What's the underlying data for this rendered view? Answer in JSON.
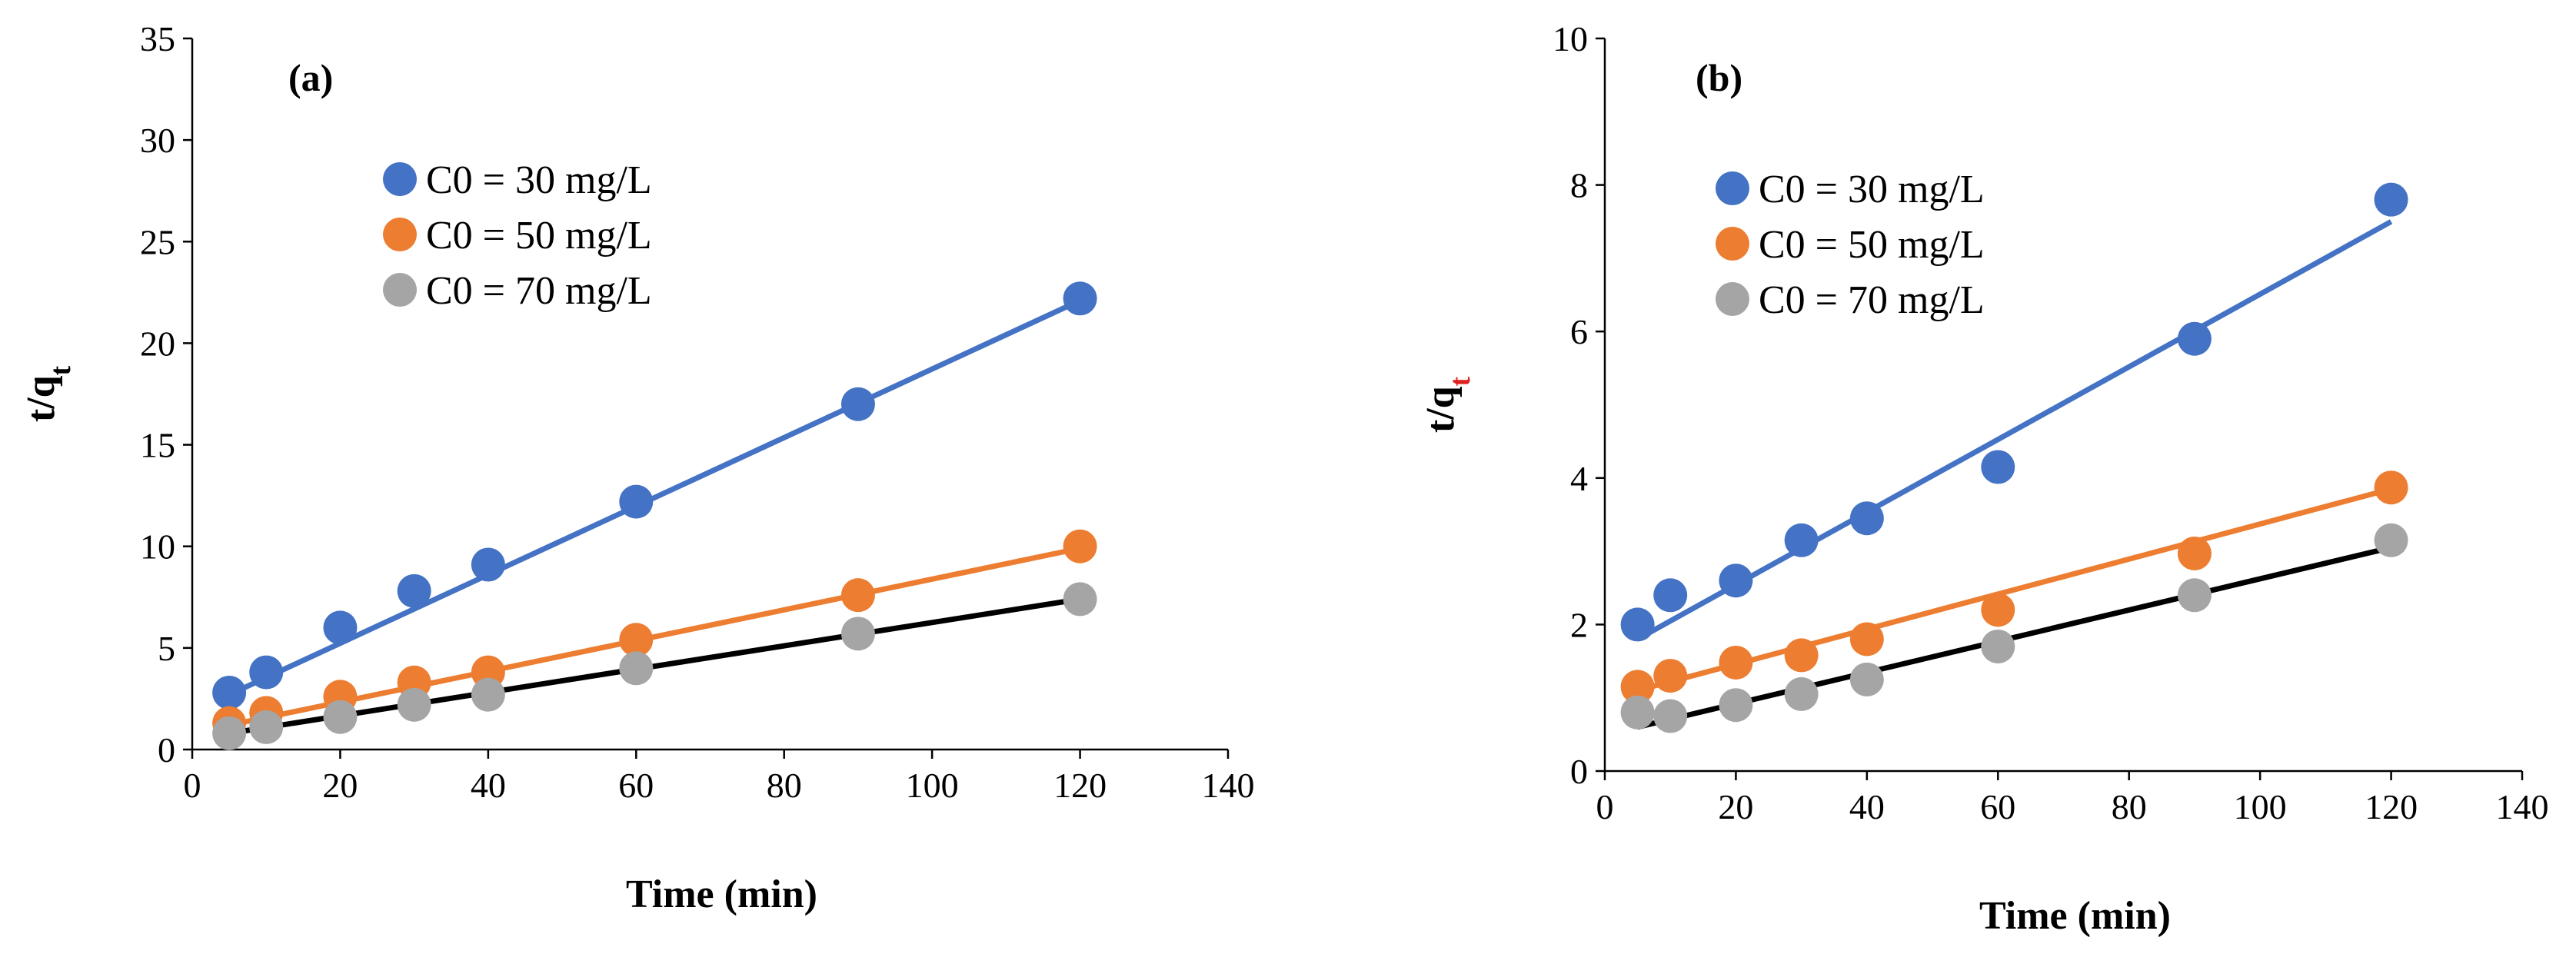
{
  "chart_data": [
    {
      "type": "scatter",
      "panel_label": "(a)",
      "xlabel": "Time (min)",
      "ylabel_main": "t/q",
      "ylabel_sub": "t",
      "ylabel_sub_color": "#000000",
      "xlim": [
        0,
        140
      ],
      "ylim": [
        0,
        35
      ],
      "xticks": [
        "0",
        "20",
        "40",
        "60",
        "80",
        "100",
        "120",
        "140"
      ],
      "yticks": [
        "0",
        "5",
        "10",
        "15",
        "20",
        "25",
        "30",
        "35"
      ],
      "grid": false,
      "legend_position": "top-center",
      "series": [
        {
          "name": "C0 = 30 mg/L",
          "color": "#4472C4",
          "line_color": "#4472C4",
          "x": [
            5,
            10,
            20,
            30,
            40,
            60,
            90,
            120
          ],
          "y": [
            2.8,
            3.8,
            6.0,
            7.8,
            9.1,
            12.2,
            17.0,
            22.2
          ],
          "fit": [
            [
              5,
              2.7
            ],
            [
              120,
              22.1
            ]
          ]
        },
        {
          "name": "C0 = 50 mg/L",
          "color": "#ED7D31",
          "line_color": "#ED7D31",
          "x": [
            5,
            10,
            20,
            30,
            40,
            60,
            90,
            120
          ],
          "y": [
            1.3,
            1.8,
            2.6,
            3.3,
            3.8,
            5.4,
            7.6,
            10.0
          ],
          "fit": [
            [
              5,
              1.2
            ],
            [
              120,
              9.9
            ]
          ]
        },
        {
          "name": "C0 = 70  mg/L",
          "color": "#A5A5A5",
          "line_color": "#000000",
          "x": [
            5,
            10,
            20,
            30,
            40,
            60,
            90,
            120
          ],
          "y": [
            0.8,
            1.1,
            1.6,
            2.2,
            2.7,
            4.0,
            5.7,
            7.4
          ],
          "fit": [
            [
              5,
              0.8
            ],
            [
              120,
              7.4
            ]
          ]
        }
      ]
    },
    {
      "type": "scatter",
      "panel_label": "(b)",
      "xlabel": "Time (min)",
      "ylabel_main": "t/q",
      "ylabel_sub": "t",
      "ylabel_sub_color": "#E02020",
      "xlim": [
        0,
        140
      ],
      "ylim": [
        0,
        10
      ],
      "xticks": [
        "0",
        "20",
        "40",
        "60",
        "80",
        "100",
        "120",
        "140"
      ],
      "yticks": [
        "0",
        "2",
        "4",
        "6",
        "8",
        "10"
      ],
      "grid": false,
      "legend_position": "top-center",
      "series": [
        {
          "name": "C0 = 30 mg/L",
          "color": "#4472C4",
          "line_color": "#4472C4",
          "x": [
            5,
            10,
            20,
            30,
            40,
            60,
            90,
            120
          ],
          "y": [
            2.0,
            2.4,
            2.6,
            3.15,
            3.45,
            4.15,
            5.9,
            7.8
          ],
          "fit": [
            [
              5,
              1.8
            ],
            [
              120,
              7.5
            ]
          ]
        },
        {
          "name": "C0 = 50 mg/L",
          "color": "#ED7D31",
          "line_color": "#ED7D31",
          "x": [
            5,
            10,
            20,
            30,
            40,
            60,
            90,
            120
          ],
          "y": [
            1.15,
            1.3,
            1.48,
            1.58,
            1.8,
            2.2,
            2.97,
            3.87
          ],
          "fit": [
            [
              5,
              1.1
            ],
            [
              120,
              3.85
            ]
          ]
        },
        {
          "name": "C0 = 70  mg/L",
          "color": "#A5A5A5",
          "line_color": "#000000",
          "x": [
            5,
            10,
            20,
            30,
            40,
            60,
            90,
            120
          ],
          "y": [
            0.8,
            0.75,
            0.9,
            1.05,
            1.25,
            1.7,
            2.4,
            3.15
          ],
          "fit": [
            [
              5,
              0.6
            ],
            [
              120,
              3.05
            ]
          ]
        }
      ]
    }
  ]
}
